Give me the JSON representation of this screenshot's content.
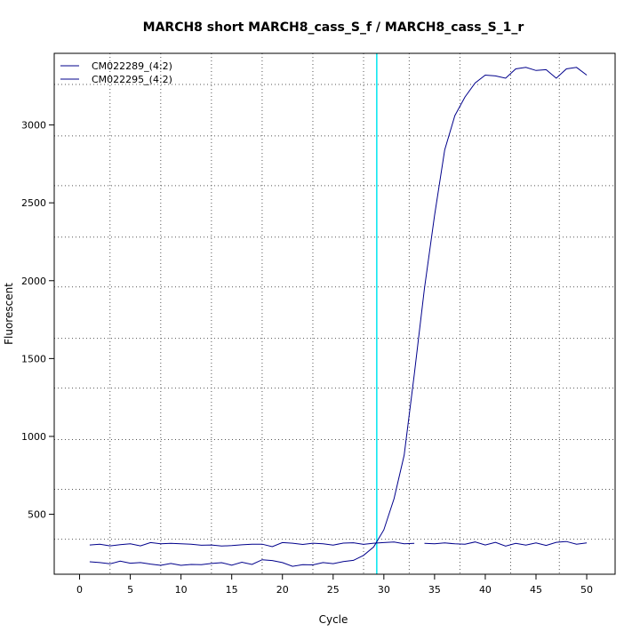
{
  "chart_data": {
    "type": "line",
    "title": "MARCH8 short MARCH8_cass_S_f / MARCH8_cass_S_1_r",
    "xlabel": "Cycle",
    "ylabel": "Fluorescent",
    "xlim": [
      -2.5,
      52.8
    ],
    "ylim": [
      115,
      3460
    ],
    "x_ticks": [
      0,
      5,
      10,
      15,
      20,
      25,
      30,
      35,
      40,
      45,
      50
    ],
    "y_ticks": [
      500,
      1000,
      1500,
      2000,
      2500,
      3000
    ],
    "vertical_grid": [
      3,
      8,
      13,
      18,
      23,
      28,
      32.5,
      37.5,
      42.5,
      47.3
    ],
    "horizontal_grid": [
      340,
      660,
      980,
      1310,
      1630,
      1960,
      2280,
      2610,
      2930,
      3260
    ],
    "grid": true,
    "threshold_cycle": 29.3,
    "threshold_color": "#00e5ee",
    "legend_position": "top-left",
    "series": [
      {
        "name": "CM022289_(4:2)",
        "color": "#00008b",
        "x": [
          1,
          2,
          3,
          4,
          5,
          6,
          7,
          8,
          9,
          10,
          11,
          12,
          13,
          14,
          15,
          16,
          17,
          18,
          19,
          20,
          21,
          22,
          23,
          24,
          25,
          26,
          27,
          28,
          29,
          30,
          31,
          32,
          33
        ],
        "values": [
          303,
          308,
          297,
          305,
          310,
          297,
          318,
          310,
          313,
          310,
          308,
          301,
          303,
          296,
          299,
          304,
          308,
          308,
          292,
          318,
          314,
          306,
          314,
          310,
          302,
          315,
          317,
          307,
          314,
          318,
          322,
          310,
          313
        ]
      },
      {
        "name": "CM022295_(4:2)",
        "color": "#00008b",
        "x": [
          1,
          2,
          3,
          4,
          5,
          6,
          7,
          8,
          9,
          10,
          11,
          12,
          13,
          14,
          15,
          16,
          17,
          18,
          19,
          20,
          21,
          22,
          23,
          24,
          25,
          26,
          27,
          28,
          29,
          30,
          31,
          32,
          33,
          34,
          35,
          36,
          37,
          38,
          39,
          40,
          41,
          42,
          43,
          44,
          45,
          46,
          47,
          48,
          49,
          50
        ],
        "values": [
          195,
          190,
          182,
          199,
          186,
          190,
          180,
          172,
          184,
          172,
          178,
          176,
          184,
          189,
          173,
          192,
          178,
          208,
          203,
          190,
          166,
          176,
          175,
          190,
          183,
          196,
          204,
          236,
          290,
          400,
          600,
          880,
          1400,
          1950,
          2420,
          2840,
          3060,
          3180,
          3270,
          3320,
          3315,
          3300,
          3360,
          3370,
          3350,
          3355,
          3300,
          3360,
          3370,
          3320
        ]
      },
      {
        "name": "",
        "color": "#00008b",
        "x": [
          34,
          35,
          36,
          37,
          38,
          39,
          40,
          41,
          42,
          43,
          44,
          45,
          46,
          47,
          48,
          49,
          50
        ],
        "values": [
          313,
          310,
          316,
          310,
          308,
          322,
          303,
          320,
          296,
          313,
          302,
          316,
          300,
          320,
          325,
          308,
          316
        ]
      }
    ]
  }
}
